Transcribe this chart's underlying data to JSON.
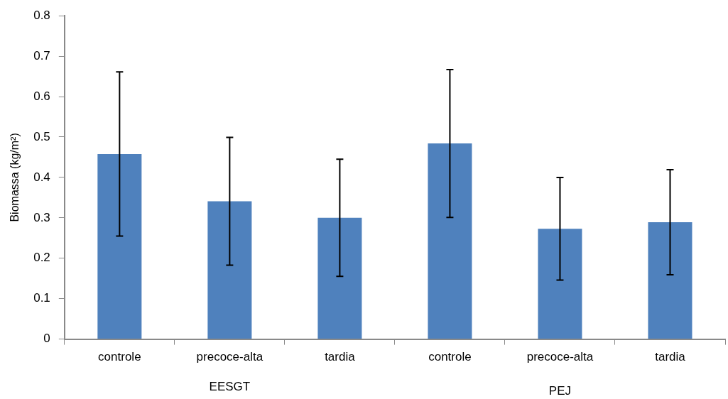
{
  "chart_data": {
    "type": "bar",
    "ylabel": "Biomassa (kg/m²)",
    "categories": [
      "controle",
      "precoce-alta",
      "tardia",
      "controle",
      "precoce-alta",
      "tardia"
    ],
    "values": [
      0.458,
      0.341,
      0.3,
      0.484,
      0.273,
      0.289
    ],
    "errors": [
      0.203,
      0.158,
      0.145,
      0.183,
      0.127,
      0.13
    ],
    "color": "#4f81bd",
    "ylim": [
      0,
      0.8
    ],
    "yticks": [
      0,
      0.1,
      0.2,
      0.3,
      0.4,
      0.5,
      0.6,
      0.7,
      0.8
    ],
    "grid": false,
    "legend": false,
    "annotations": [
      "EESGT",
      "PEJ"
    ]
  }
}
